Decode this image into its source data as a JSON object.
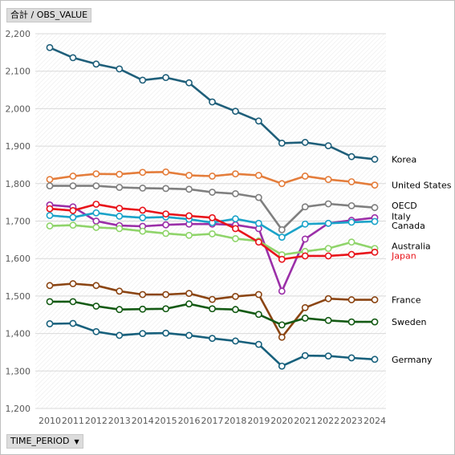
{
  "header": {
    "value_field_label": "合計 / OBS_VALUE"
  },
  "footer": {
    "period_field_label": "TIME_PERIOD",
    "dropdown_icon": "▼"
  },
  "chart_data": {
    "type": "line",
    "title": "",
    "xlabel": "",
    "ylabel": "",
    "x": [
      "2010",
      "2011",
      "2012",
      "2013",
      "2014",
      "2015",
      "2016",
      "2017",
      "2018",
      "2019",
      "2020",
      "2021",
      "2022",
      "2023",
      "2024"
    ],
    "ylim": [
      1200,
      2200
    ],
    "yticks": [
      1200,
      1300,
      1400,
      1500,
      1600,
      1700,
      1800,
      1900,
      2000,
      2100,
      2200
    ],
    "ytick_labels": [
      "1,200",
      "1,300",
      "1,400",
      "1,500",
      "1,600",
      "1,700",
      "1,800",
      "1,900",
      "2,000",
      "2,100",
      "2,200"
    ],
    "grid": true,
    "legend": "right-end labels",
    "series": [
      {
        "name": "Korea",
        "color": "#1f5f7a",
        "values": [
          2163,
          2136,
          2119,
          2106,
          2076,
          2083,
          2069,
          2018,
          1993,
          1967,
          1908,
          1910,
          1901,
          1872,
          1865
        ]
      },
      {
        "name": "United States",
        "color": "#e47d3b",
        "values": [
          1811,
          1820,
          1826,
          1825,
          1830,
          1831,
          1822,
          1820,
          1826,
          1822,
          1800,
          1820,
          1811,
          1805,
          1796
        ]
      },
      {
        "name": "OECD",
        "color": "#7f7f7f",
        "values": [
          1794,
          1794,
          1794,
          1790,
          1788,
          1787,
          1785,
          1777,
          1773,
          1763,
          1677,
          1738,
          1746,
          1741,
          1736
        ]
      },
      {
        "name": "Italy",
        "color": "#9b2fa8",
        "values": [
          1743,
          1738,
          1700,
          1688,
          1686,
          1690,
          1692,
          1692,
          1690,
          1680,
          1513,
          1652,
          1694,
          1702,
          1709
        ]
      },
      {
        "name": "Canada",
        "color": "#1aa3c9",
        "values": [
          1715,
          1710,
          1722,
          1713,
          1709,
          1711,
          1705,
          1696,
          1706,
          1694,
          1657,
          1692,
          1694,
          1697,
          1699
        ]
      },
      {
        "name": "Australia",
        "color": "#8fd46a",
        "values": [
          1687,
          1689,
          1683,
          1680,
          1673,
          1667,
          1662,
          1666,
          1653,
          1647,
          1610,
          1619,
          1627,
          1644,
          1627
        ]
      },
      {
        "name": "Japan",
        "color": "#e8141b",
        "label_color": "#e8141b",
        "values": [
          1733,
          1728,
          1745,
          1734,
          1729,
          1719,
          1714,
          1709,
          1680,
          1644,
          1598,
          1607,
          1607,
          1611,
          1617
        ]
      },
      {
        "name": "France",
        "color": "#8b4513",
        "values": [
          1528,
          1533,
          1528,
          1513,
          1504,
          1504,
          1507,
          1491,
          1499,
          1504,
          1390,
          1469,
          1493,
          1490,
          1490
        ]
      },
      {
        "name": "Sweden",
        "color": "#145a14",
        "values": [
          1485,
          1485,
          1473,
          1464,
          1465,
          1466,
          1479,
          1466,
          1464,
          1451,
          1423,
          1441,
          1435,
          1431,
          1431
        ]
      },
      {
        "name": "Germany",
        "color": "#17607c",
        "values": [
          1426,
          1427,
          1405,
          1395,
          1400,
          1401,
          1395,
          1387,
          1380,
          1371,
          1313,
          1341,
          1340,
          1335,
          1331
        ]
      }
    ],
    "end_labels": [
      {
        "text": "Korea",
        "series": "Korea",
        "y_value": 1865
      },
      {
        "text": "United States",
        "series": "United States",
        "y_value": 1796
      },
      {
        "text": "OECD",
        "series": "OECD",
        "y_value": 1742
      },
      {
        "text": "Italy",
        "series": "Italy",
        "y_value": 1713
      },
      {
        "text": "Canada",
        "series": "Canada",
        "y_value": 1688
      },
      {
        "text": "Australia",
        "series": "Australia",
        "y_value": 1634
      },
      {
        "text": "Japan",
        "series": "Japan",
        "y_value": 1608
      },
      {
        "text": "France",
        "series": "France",
        "y_value": 1490
      },
      {
        "text": "Sweden",
        "series": "Sweden",
        "y_value": 1431
      },
      {
        "text": "Germany",
        "series": "Germany",
        "y_value": 1331
      }
    ]
  }
}
